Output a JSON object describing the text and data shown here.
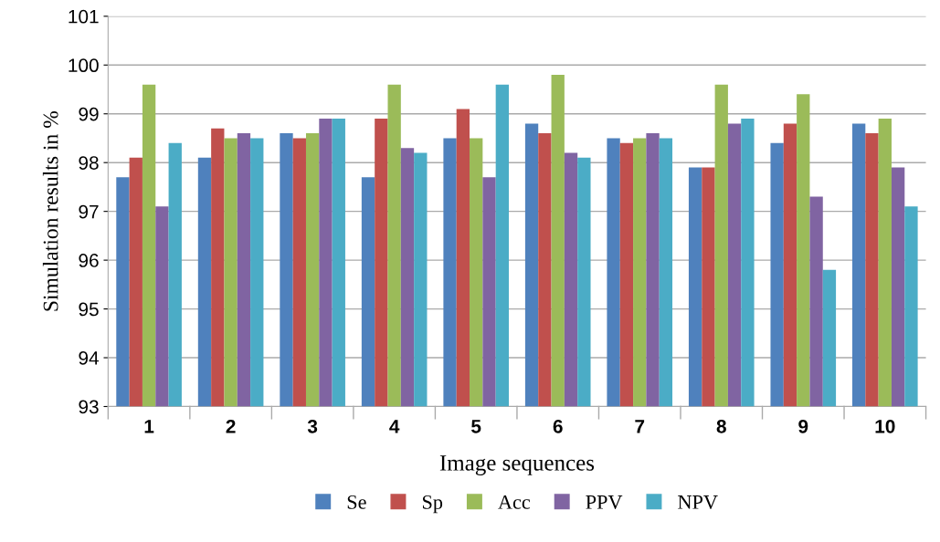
{
  "chart_data": {
    "type": "bar",
    "xlabel": "Image sequences",
    "ylabel": "Simulation results in %",
    "categories": [
      "1",
      "2",
      "3",
      "4",
      "5",
      "6",
      "7",
      "8",
      "9",
      "10"
    ],
    "series": [
      {
        "name": "Se",
        "color": "#4f81bd",
        "values": [
          97.7,
          98.1,
          98.6,
          97.7,
          98.5,
          98.8,
          98.5,
          97.9,
          98.4,
          98.8
        ]
      },
      {
        "name": "Sp",
        "color": "#c0504d",
        "values": [
          98.1,
          98.7,
          98.5,
          98.9,
          99.1,
          98.6,
          98.4,
          97.9,
          98.8,
          98.6
        ]
      },
      {
        "name": "Acc",
        "color": "#9bbb59",
        "values": [
          99.6,
          98.5,
          98.6,
          99.6,
          98.5,
          99.8,
          98.5,
          99.6,
          99.4,
          98.9
        ]
      },
      {
        "name": "PPV",
        "color": "#8064a2",
        "values": [
          97.1,
          98.6,
          98.9,
          98.3,
          97.7,
          98.2,
          98.6,
          98.8,
          97.3,
          97.9
        ]
      },
      {
        "name": "NPV",
        "color": "#4bacc6",
        "values": [
          98.4,
          98.5,
          98.9,
          98.2,
          99.6,
          98.1,
          98.5,
          98.9,
          95.8,
          97.1
        ]
      }
    ],
    "ylim": [
      93,
      101
    ],
    "yticks": [
      93,
      94,
      95,
      96,
      97,
      98,
      99,
      100,
      101
    ],
    "grid": "y",
    "legend": "bottom"
  }
}
